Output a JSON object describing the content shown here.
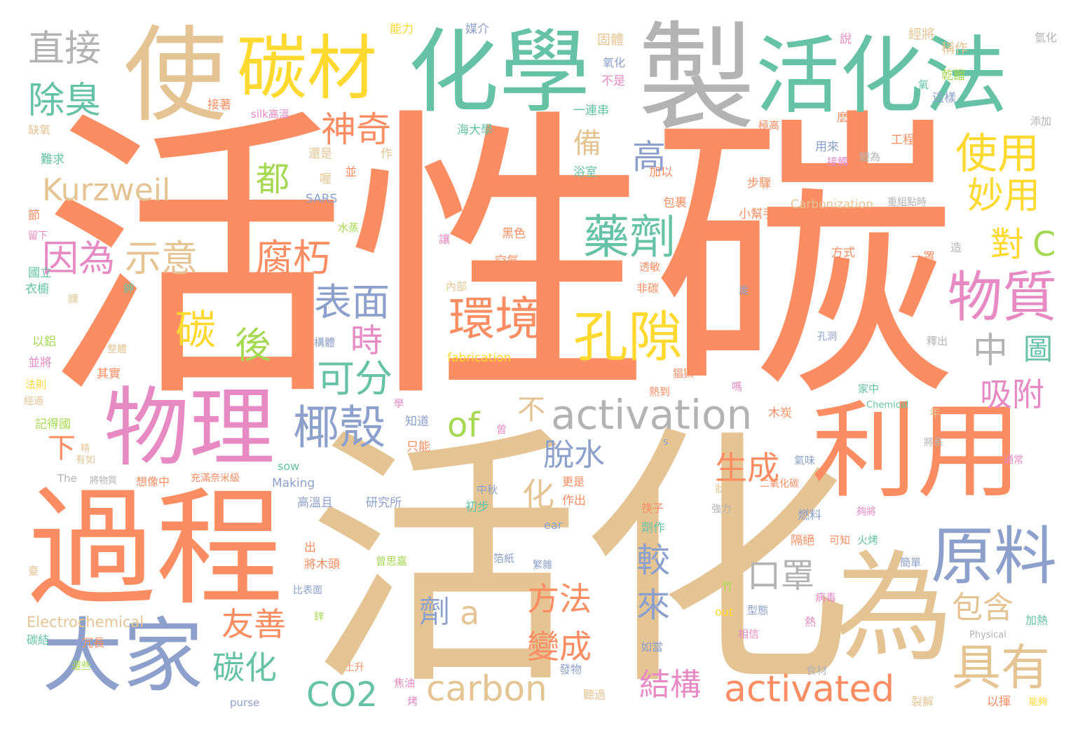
{
  "palette": {
    "orange": "#fc8d62",
    "tan": "#e5c494",
    "green": "#66c2a5",
    "gray": "#b3b3b3",
    "blue": "#8da0cb",
    "pink": "#e78ac3",
    "yellow": "#ffd92f",
    "lime": "#a6d854"
  },
  "words": [
    {
      "text": "活性碳",
      "color": "orange"
    },
    {
      "text": "活化",
      "color": "tan"
    },
    {
      "text": "製",
      "color": "gray"
    },
    {
      "text": "化學",
      "color": "green"
    },
    {
      "text": "活化法",
      "color": "green"
    },
    {
      "text": "使",
      "color": "tan"
    },
    {
      "text": "碳材",
      "color": "yellow"
    },
    {
      "text": "過程",
      "color": "orange"
    },
    {
      "text": "利用",
      "color": "orange"
    },
    {
      "text": "為",
      "color": "tan"
    },
    {
      "text": "物理",
      "color": "pink"
    },
    {
      "text": "大家",
      "color": "blue"
    },
    {
      "text": "原料",
      "color": "blue"
    },
    {
      "text": "具有",
      "color": "tan"
    },
    {
      "text": "物質",
      "color": "pink"
    },
    {
      "text": "孔隙",
      "color": "yellow"
    },
    {
      "text": "activation",
      "color": "gray"
    },
    {
      "text": "activated",
      "color": "orange"
    },
    {
      "text": "carbon",
      "color": "tan"
    },
    {
      "text": "CO2",
      "color": "green"
    },
    {
      "text": "直接",
      "color": "gray"
    },
    {
      "text": "除臭",
      "color": "green"
    },
    {
      "text": "神奇",
      "color": "orange"
    },
    {
      "text": "Kurzweil",
      "color": "tan"
    },
    {
      "text": "因為",
      "color": "pink"
    },
    {
      "text": "示意",
      "color": "tan"
    },
    {
      "text": "腐朽",
      "color": "orange"
    },
    {
      "text": "藥劑",
      "color": "green"
    },
    {
      "text": "環境",
      "color": "orange"
    },
    {
      "text": "表面",
      "color": "blue"
    },
    {
      "text": "碳",
      "color": "yellow"
    },
    {
      "text": "後",
      "color": "lime"
    },
    {
      "text": "時",
      "color": "pink"
    },
    {
      "text": "可分",
      "color": "green"
    },
    {
      "text": "椰殼",
      "color": "blue"
    },
    {
      "text": "of",
      "color": "lime"
    },
    {
      "text": "口罩",
      "color": "gray"
    },
    {
      "text": "中",
      "color": "gray"
    },
    {
      "text": "圖",
      "color": "green"
    },
    {
      "text": "吸附",
      "color": "pink"
    },
    {
      "text": "生成",
      "color": "orange"
    },
    {
      "text": "友善",
      "color": "orange"
    },
    {
      "text": "碳化",
      "color": "green"
    },
    {
      "text": "脫水",
      "color": "blue"
    },
    {
      "text": "化",
      "color": "tan"
    },
    {
      "text": "方法",
      "color": "orange"
    },
    {
      "text": "變成",
      "color": "orange"
    },
    {
      "text": "較",
      "color": "blue"
    },
    {
      "text": "來",
      "color": "blue"
    },
    {
      "text": "劑",
      "color": "blue"
    },
    {
      "text": "a",
      "color": "tan"
    },
    {
      "text": "包含",
      "color": "tan"
    },
    {
      "text": "結構",
      "color": "pink"
    },
    {
      "text": "使用",
      "color": "yellow"
    },
    {
      "text": "妙用",
      "color": "yellow"
    },
    {
      "text": "對",
      "color": "yellow"
    },
    {
      "text": "C",
      "color": "lime"
    },
    {
      "text": "都",
      "color": "lime"
    },
    {
      "text": "高",
      "color": "blue"
    },
    {
      "text": "備",
      "color": "tan"
    },
    {
      "text": "不",
      "color": "tan"
    },
    {
      "text": "下",
      "color": "orange"
    },
    {
      "text": "能力",
      "color": "yellow"
    },
    {
      "text": "媒介",
      "color": "blue"
    },
    {
      "text": "固體",
      "color": "tan"
    },
    {
      "text": "說",
      "color": "pink"
    },
    {
      "text": "經將",
      "color": "tan"
    },
    {
      "text": "稱作",
      "color": "tan"
    },
    {
      "text": "氫化",
      "color": "gray"
    },
    {
      "text": "氧化",
      "color": "blue"
    },
    {
      "text": "不是",
      "color": "pink"
    },
    {
      "text": "乾餾",
      "color": "lime"
    },
    {
      "text": "氧",
      "color": "green"
    },
    {
      "text": "這樣",
      "color": "blue"
    },
    {
      "text": "一連串",
      "color": "green"
    },
    {
      "text": "接著",
      "color": "orange"
    },
    {
      "text": "silk高溫",
      "color": "pink"
    },
    {
      "text": "缺氧",
      "color": "tan"
    },
    {
      "text": "海大學",
      "color": "green"
    },
    {
      "text": "極高",
      "color": "orange"
    },
    {
      "text": "麼",
      "color": "orange"
    },
    {
      "text": "工程",
      "color": "orange"
    },
    {
      "text": "添加",
      "color": "gray"
    },
    {
      "text": "難求",
      "color": "green"
    },
    {
      "text": "還是",
      "color": "tan"
    },
    {
      "text": "作",
      "color": "tan"
    },
    {
      "text": "用來",
      "color": "blue"
    },
    {
      "text": "接觸",
      "color": "pink"
    },
    {
      "text": "變為",
      "color": "gray"
    },
    {
      "text": "浴室",
      "color": "green"
    },
    {
      "text": "加以",
      "color": "orange"
    },
    {
      "text": "並",
      "color": "orange"
    },
    {
      "text": "喔",
      "color": "tan"
    },
    {
      "text": "步驟",
      "color": "orange"
    },
    {
      "text": "SARS",
      "color": "blue"
    },
    {
      "text": "包裹",
      "color": "orange"
    },
    {
      "text": "Carbonization",
      "color": "tan"
    },
    {
      "text": "重組點時",
      "color": "gray"
    },
    {
      "text": "節",
      "color": "orange"
    },
    {
      "text": "小幫手",
      "color": "orange"
    },
    {
      "text": "水蒸",
      "color": "lime"
    },
    {
      "text": "留下",
      "color": "pink"
    },
    {
      "text": "讓",
      "color": "pink"
    },
    {
      "text": "黑色",
      "color": "orange"
    },
    {
      "text": "造",
      "color": "gray"
    },
    {
      "text": "一罩",
      "color": "orange"
    },
    {
      "text": "方式",
      "color": "orange"
    },
    {
      "text": "空氣",
      "color": "orange"
    },
    {
      "text": "國立",
      "color": "green"
    },
    {
      "text": "鉀",
      "color": "green"
    },
    {
      "text": "透敏",
      "color": "orange"
    },
    {
      "text": "衣櫥",
      "color": "green"
    },
    {
      "text": "課",
      "color": "tan"
    },
    {
      "text": "內部",
      "color": "tan"
    },
    {
      "text": "非碳",
      "color": "orange"
    },
    {
      "text": "度",
      "color": "blue"
    },
    {
      "text": "以鋁",
      "color": "lime"
    },
    {
      "text": "整體",
      "color": "tan"
    },
    {
      "text": "構體",
      "color": "blue"
    },
    {
      "text": "孔洞",
      "color": "blue"
    },
    {
      "text": "釋出",
      "color": "gray"
    },
    {
      "text": "並將",
      "color": "pink"
    },
    {
      "text": "fabrication",
      "color": "yellow"
    },
    {
      "text": "其實",
      "color": "orange"
    },
    {
      "text": "法則",
      "color": "yellow"
    },
    {
      "text": "熱到",
      "color": "orange"
    },
    {
      "text": "猖獗",
      "color": "orange"
    },
    {
      "text": "家中",
      "color": "green"
    },
    {
      "text": "嗎",
      "color": "pink"
    },
    {
      "text": "Chemical",
      "color": "green"
    },
    {
      "text": "經過",
      "color": "tan"
    },
    {
      "text": "學",
      "color": "pink"
    },
    {
      "text": "木炭",
      "color": "orange"
    },
    {
      "text": "記得國",
      "color": "lime"
    },
    {
      "text": "知道",
      "color": "blue"
    },
    {
      "text": "年",
      "color": "tan"
    },
    {
      "text": "精",
      "color": "tan"
    },
    {
      "text": "曾",
      "color": "pink"
    },
    {
      "text": "只能",
      "color": "orange"
    },
    {
      "text": "s",
      "color": "blue"
    },
    {
      "text": "將系",
      "color": "gray"
    },
    {
      "text": "有如",
      "color": "tan"
    },
    {
      "text": "氣味",
      "color": "blue"
    },
    {
      "text": "sow",
      "color": "green"
    },
    {
      "text": "通常",
      "color": "pink"
    },
    {
      "text": "The",
      "color": "gray"
    },
    {
      "text": "將物質",
      "color": "gray"
    },
    {
      "text": "想像中",
      "color": "orange"
    },
    {
      "text": "充滿奈米級",
      "color": "orange"
    },
    {
      "text": "Making",
      "color": "blue"
    },
    {
      "text": "狀態",
      "color": "tan"
    },
    {
      "text": "二氧化碳",
      "color": "orange"
    },
    {
      "text": "中秋",
      "color": "blue"
    },
    {
      "text": "更是",
      "color": "orange"
    },
    {
      "text": "高溫且",
      "color": "blue"
    },
    {
      "text": "研究所",
      "color": "blue"
    },
    {
      "text": "初步",
      "color": "green"
    },
    {
      "text": "作出",
      "color": "orange"
    },
    {
      "text": "筷子",
      "color": "orange"
    },
    {
      "text": "強力",
      "color": "gray"
    },
    {
      "text": "夠將",
      "color": "pink"
    },
    {
      "text": "ear",
      "color": "blue"
    },
    {
      "text": "燃料",
      "color": "blue"
    },
    {
      "text": "劑作",
      "color": "green"
    },
    {
      "text": "出",
      "color": "orange"
    },
    {
      "text": "隔絕",
      "color": "orange"
    },
    {
      "text": "可知",
      "color": "orange"
    },
    {
      "text": "火烤",
      "color": "green"
    },
    {
      "text": "將木頭",
      "color": "orange"
    },
    {
      "text": "曾思嘉",
      "color": "lime"
    },
    {
      "text": "箔紙",
      "color": "blue"
    },
    {
      "text": "繁雜",
      "color": "blue"
    },
    {
      "text": "簡單",
      "color": "blue"
    },
    {
      "text": "臺",
      "color": "tan"
    },
    {
      "text": "竹",
      "color": "lime"
    },
    {
      "text": "比表面",
      "color": "blue"
    },
    {
      "text": "病毒",
      "color": "pink"
    },
    {
      "text": "Electrochemical",
      "color": "tan"
    },
    {
      "text": "鋅",
      "color": "lime"
    },
    {
      "text": "out",
      "color": "yellow"
    },
    {
      "text": "型態",
      "color": "blue"
    },
    {
      "text": "熱",
      "color": "pink"
    },
    {
      "text": "加熱",
      "color": "green"
    },
    {
      "text": "碳結",
      "color": "green"
    },
    {
      "text": "冗長",
      "color": "orange"
    },
    {
      "text": "如當",
      "color": "blue"
    },
    {
      "text": "相信",
      "color": "pink"
    },
    {
      "text": "Physical",
      "color": "gray"
    },
    {
      "text": "還些",
      "color": "lime"
    },
    {
      "text": "上升",
      "color": "orange"
    },
    {
      "text": "發物",
      "color": "blue"
    },
    {
      "text": "食材",
      "color": "gray"
    },
    {
      "text": "purse",
      "color": "blue"
    },
    {
      "text": "焦油",
      "color": "pink"
    },
    {
      "text": "烤",
      "color": "pink"
    },
    {
      "text": "聽過",
      "color": "tan"
    },
    {
      "text": "裂解",
      "color": "tan"
    },
    {
      "text": "以揮",
      "color": "orange"
    },
    {
      "text": "能夠",
      "color": "yellow"
    }
  ]
}
